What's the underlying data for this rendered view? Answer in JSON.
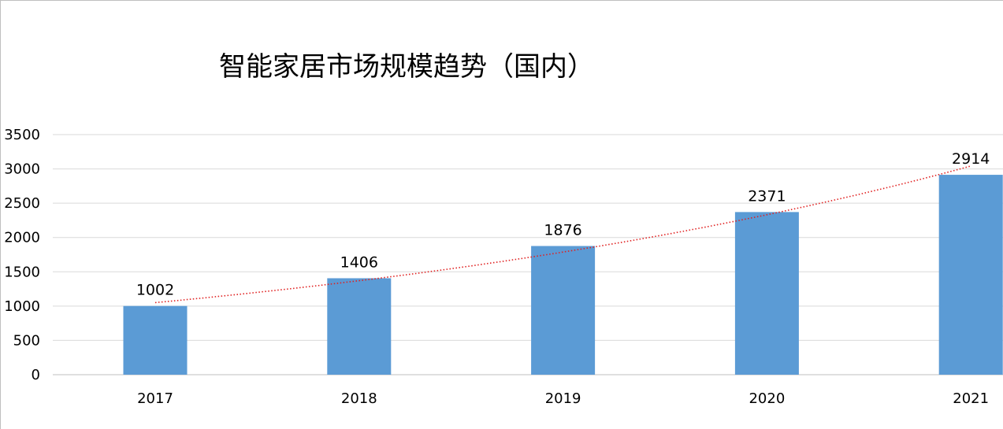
{
  "chart_data": {
    "type": "bar",
    "title": "智能家居市场规模趋势（国内）",
    "categories": [
      "2017",
      "2018",
      "2019",
      "2020",
      "2021"
    ],
    "values": [
      1002,
      1406,
      1876,
      2371,
      2914
    ],
    "data_labels": [
      "1002",
      "1406",
      "1876",
      "2371",
      "2914"
    ],
    "ylim": [
      0,
      3500
    ],
    "y_ticks": [
      "0",
      "500",
      "1000",
      "1500",
      "2000",
      "2500",
      "3000",
      "3500"
    ],
    "xlabel": "",
    "ylabel": "",
    "grid": true,
    "trendline": {
      "type": "exponential",
      "style": "dotted",
      "color": "#e02020"
    },
    "bar_color": "#5b9bd5"
  }
}
